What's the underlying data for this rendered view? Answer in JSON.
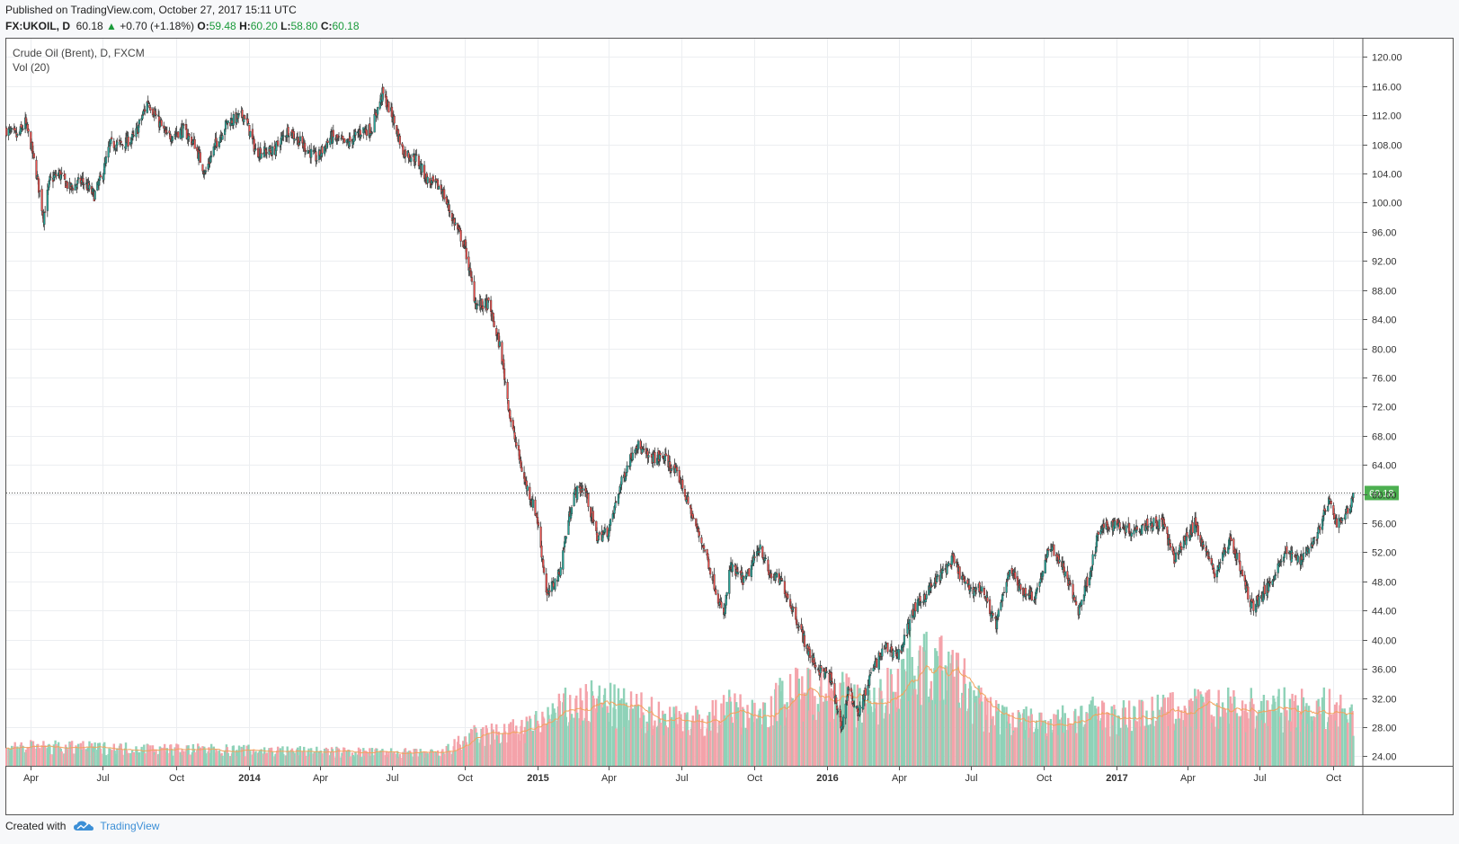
{
  "header": {
    "published": "Published on TradingView.com, October 27, 2017 15:11 UTC",
    "symbol": "FX:UKOIL, D",
    "last": "60.18",
    "change_arrow": "▲",
    "change": "+0.70 (+1.18%)",
    "o_label": "O:",
    "o_val": "59.48",
    "h_label": "H:",
    "h_val": "60.20",
    "l_label": "L:",
    "l_val": "58.80",
    "c_label": "C:",
    "c_val": "60.18"
  },
  "pane": {
    "title": "Crude Oil (Brent), D, FXCM",
    "vol_label": "Vol (20)"
  },
  "footer": {
    "created_with": "Created with",
    "brand": "TradingView",
    "logo_icon": "tradingview-cloud-icon"
  },
  "colors": {
    "up_candle": "#26a69a",
    "down_candle": "#ef5350",
    "vol_up": "#8fd2b8",
    "vol_down": "#f4a3aa",
    "vol_ma": "#f2a25c",
    "price_line": "#333333",
    "last_price_badge": "#4caf50"
  },
  "chart_data": {
    "type": "candlestick",
    "title": "Crude Oil (Brent), D, FXCM",
    "symbol": "FX:UKOIL",
    "last_price": 60.18,
    "y_axis": {
      "ticks": [
        120,
        116,
        112,
        108,
        104,
        100,
        96,
        92,
        88,
        84,
        80,
        76,
        72,
        68,
        64,
        60,
        56,
        52,
        48,
        44,
        40,
        36,
        32,
        28,
        24
      ],
      "tick_labels": [
        "120.00",
        "116.00",
        "112.00",
        "108.00",
        "104.00",
        "100.00",
        "96.00",
        "92.00",
        "88.00",
        "84.00",
        "80.00",
        "76.00",
        "72.00",
        "68.00",
        "64.00",
        "60.00",
        "56.00",
        "52.00",
        "48.00",
        "44.00",
        "40.00",
        "36.00",
        "32.00",
        "28.00",
        "24.00"
      ],
      "ylim": [
        22.7,
        122.5
      ]
    },
    "x_axis": {
      "tick_labels": [
        "Apr",
        "Jul",
        "Oct",
        "2014",
        "Apr",
        "Jul",
        "Oct",
        "2015",
        "Apr",
        "Jul",
        "Oct",
        "2016",
        "Apr",
        "Jul",
        "Oct",
        "2017",
        "Apr",
        "Jul",
        "Oct"
      ],
      "tick_dates": [
        "2013-04-01",
        "2013-07-01",
        "2013-10-01",
        "2014-01-01",
        "2014-04-01",
        "2014-07-01",
        "2014-10-01",
        "2015-01-01",
        "2015-04-01",
        "2015-07-01",
        "2015-10-01",
        "2016-01-01",
        "2016-04-01",
        "2016-07-01",
        "2016-10-01",
        "2017-01-01",
        "2017-04-01",
        "2017-07-01",
        "2017-10-01"
      ],
      "range": [
        "2013-03-01",
        "2017-11-08"
      ]
    },
    "price_path": [
      [
        "2013-03-01",
        110
      ],
      [
        "2013-03-15",
        109
      ],
      [
        "2013-03-25",
        111
      ],
      [
        "2013-04-01",
        108
      ],
      [
        "2013-04-08",
        104
      ],
      [
        "2013-04-17",
        98
      ],
      [
        "2013-04-25",
        103
      ],
      [
        "2013-05-06",
        104
      ],
      [
        "2013-05-20",
        102
      ],
      [
        "2013-06-05",
        103
      ],
      [
        "2013-06-20",
        101
      ],
      [
        "2013-07-01",
        104
      ],
      [
        "2013-07-10",
        108
      ],
      [
        "2013-07-25",
        108
      ],
      [
        "2013-08-10",
        109
      ],
      [
        "2013-08-27",
        114
      ],
      [
        "2013-09-05",
        112
      ],
      [
        "2013-09-20",
        109
      ],
      [
        "2013-10-10",
        110
      ],
      [
        "2013-10-25",
        108
      ],
      [
        "2013-11-07",
        104
      ],
      [
        "2013-11-20",
        108
      ],
      [
        "2013-12-05",
        111
      ],
      [
        "2013-12-27",
        112
      ],
      [
        "2014-01-10",
        107
      ],
      [
        "2014-02-01",
        107
      ],
      [
        "2014-02-20",
        110
      ],
      [
        "2014-03-10",
        108
      ],
      [
        "2014-03-28",
        106
      ],
      [
        "2014-04-15",
        109
      ],
      [
        "2014-05-05",
        108
      ],
      [
        "2014-05-25",
        110
      ],
      [
        "2014-06-05",
        110
      ],
      [
        "2014-06-19",
        115
      ],
      [
        "2014-07-01",
        112
      ],
      [
        "2014-07-15",
        107
      ],
      [
        "2014-08-01",
        106
      ],
      [
        "2014-08-15",
        103
      ],
      [
        "2014-09-01",
        102
      ],
      [
        "2014-09-15",
        98
      ],
      [
        "2014-10-01",
        94
      ],
      [
        "2014-10-15",
        86
      ],
      [
        "2014-10-31",
        86
      ],
      [
        "2014-11-15",
        80
      ],
      [
        "2014-11-28",
        70
      ],
      [
        "2014-12-15",
        62
      ],
      [
        "2014-12-31",
        57
      ],
      [
        "2015-01-13",
        46
      ],
      [
        "2015-01-28",
        49
      ],
      [
        "2015-02-15",
        60
      ],
      [
        "2015-03-01",
        61
      ],
      [
        "2015-03-17",
        54
      ],
      [
        "2015-04-01",
        55
      ],
      [
        "2015-04-15",
        61
      ],
      [
        "2015-05-05",
        67
      ],
      [
        "2015-05-20",
        65
      ],
      [
        "2015-06-10",
        65
      ],
      [
        "2015-06-30",
        62
      ],
      [
        "2015-07-15",
        57
      ],
      [
        "2015-08-01",
        52
      ],
      [
        "2015-08-24",
        43
      ],
      [
        "2015-09-01",
        50
      ],
      [
        "2015-09-20",
        48
      ],
      [
        "2015-10-09",
        53
      ],
      [
        "2015-10-20",
        49
      ],
      [
        "2015-11-05",
        48
      ],
      [
        "2015-11-20",
        44
      ],
      [
        "2015-12-10",
        38
      ],
      [
        "2015-12-21",
        36
      ],
      [
        "2016-01-05",
        35
      ],
      [
        "2016-01-20",
        28
      ],
      [
        "2016-01-28",
        33
      ],
      [
        "2016-02-11",
        30
      ],
      [
        "2016-02-28",
        36
      ],
      [
        "2016-03-15",
        39
      ],
      [
        "2016-04-01",
        38
      ],
      [
        "2016-04-20",
        44
      ],
      [
        "2016-05-10",
        47
      ],
      [
        "2016-06-08",
        51
      ],
      [
        "2016-06-27",
        47
      ],
      [
        "2016-07-15",
        47
      ],
      [
        "2016-08-02",
        42
      ],
      [
        "2016-08-19",
        50
      ],
      [
        "2016-09-01",
        47
      ],
      [
        "2016-09-20",
        46
      ],
      [
        "2016-10-10",
        53
      ],
      [
        "2016-10-25",
        50
      ],
      [
        "2016-11-14",
        44
      ],
      [
        "2016-11-30",
        50
      ],
      [
        "2016-12-10",
        55
      ],
      [
        "2016-12-31",
        56
      ],
      [
        "2017-01-20",
        55
      ],
      [
        "2017-02-10",
        56
      ],
      [
        "2017-03-01",
        56
      ],
      [
        "2017-03-14",
        51
      ],
      [
        "2017-04-10",
        56
      ],
      [
        "2017-05-05",
        49
      ],
      [
        "2017-05-25",
        54
      ],
      [
        "2017-06-21",
        44.5
      ],
      [
        "2017-07-10",
        47
      ],
      [
        "2017-08-01",
        52
      ],
      [
        "2017-08-20",
        51
      ],
      [
        "2017-09-10",
        54
      ],
      [
        "2017-09-26",
        59
      ],
      [
        "2017-10-06",
        56
      ],
      [
        "2017-10-20",
        57.5
      ],
      [
        "2017-10-27",
        60.18
      ]
    ],
    "volume_envelope": [
      [
        "2013-03-01",
        25.5
      ],
      [
        "2014-09-01",
        24.5
      ],
      [
        "2014-10-10",
        27
      ],
      [
        "2014-12-20",
        28
      ],
      [
        "2015-02-05",
        31
      ],
      [
        "2015-03-15",
        32
      ],
      [
        "2015-06-01",
        30
      ],
      [
        "2015-08-01",
        29
      ],
      [
        "2015-08-24",
        31
      ],
      [
        "2015-10-01",
        30
      ],
      [
        "2015-11-15",
        33
      ],
      [
        "2015-12-15",
        34
      ],
      [
        "2016-01-20",
        33
      ],
      [
        "2016-02-28",
        31
      ],
      [
        "2016-04-20",
        38
      ],
      [
        "2016-05-15",
        37
      ],
      [
        "2016-06-20",
        35
      ],
      [
        "2016-07-15",
        31
      ],
      [
        "2016-09-01",
        29
      ],
      [
        "2016-10-15",
        29
      ],
      [
        "2016-11-15",
        30
      ],
      [
        "2017-01-20",
        30
      ],
      [
        "2017-04-10",
        31
      ],
      [
        "2017-06-21",
        31
      ],
      [
        "2017-08-01",
        31
      ],
      [
        "2017-09-26",
        31
      ],
      [
        "2017-10-27",
        30
      ]
    ],
    "volume_ylim": [
      22.7,
      122.5
    ]
  }
}
